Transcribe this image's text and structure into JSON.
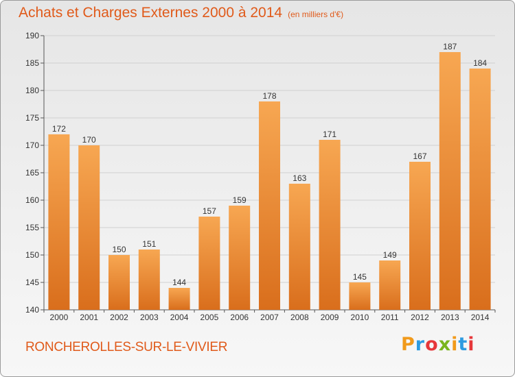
{
  "header": {
    "title": "Achats et Charges Externes 2000 à 2014",
    "unit": "(en milliers d'€)"
  },
  "footer": {
    "commune": "RONCHEROLLES-SUR-LE-VIVIER",
    "logo": "Proxiti"
  },
  "colors": {
    "bar_light": "#f7a752",
    "bar_dark": "#d96e1c",
    "title": "#e05a1a",
    "grid": "#d0d0d0"
  },
  "chart_data": {
    "type": "bar",
    "title": "Achats et Charges Externes 2000 à 2014",
    "subtitle": "(en milliers d'€)",
    "categories": [
      "2000",
      "2001",
      "2002",
      "2003",
      "2004",
      "2005",
      "2006",
      "2007",
      "2008",
      "2009",
      "2010",
      "2011",
      "2012",
      "2013",
      "2014"
    ],
    "values": [
      172,
      170,
      150,
      151,
      144,
      157,
      159,
      178,
      163,
      171,
      145,
      149,
      167,
      187,
      184
    ],
    "ylim": [
      140,
      190
    ],
    "yticks": [
      140,
      145,
      150,
      155,
      160,
      165,
      170,
      175,
      180,
      185,
      190
    ],
    "grid": true,
    "data_labels": true
  }
}
